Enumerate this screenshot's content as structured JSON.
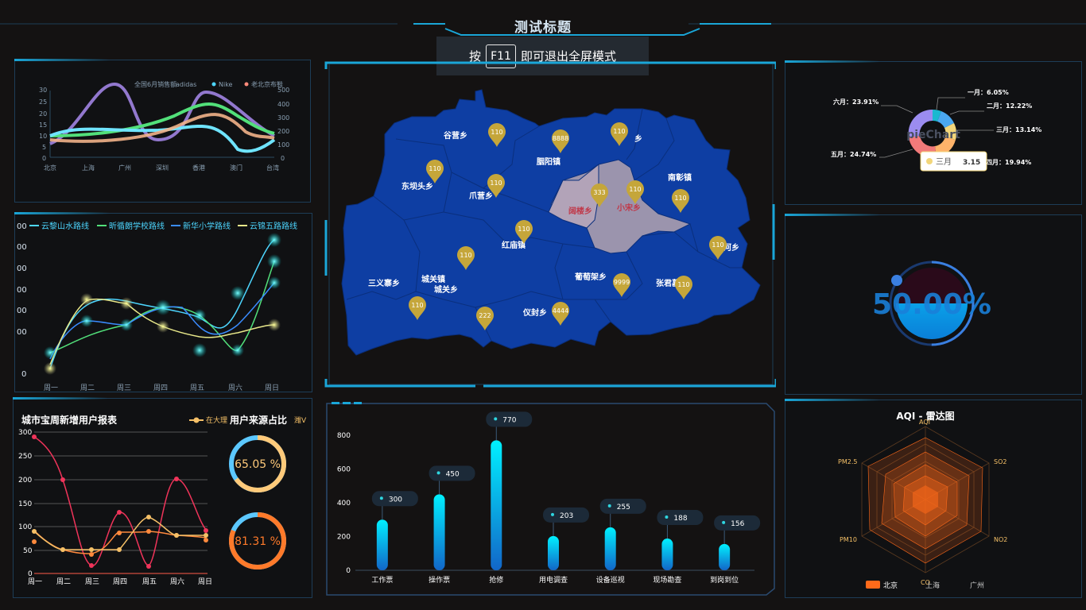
{
  "header": {
    "title": "测试标题",
    "fullscreen_tip": {
      "before": "按",
      "key": "F11",
      "after": "即可退出全屏模式"
    }
  },
  "panel1": {
    "legend": [
      "全国6月销售额",
      "adidas",
      "Nike",
      "老北京布鞋"
    ],
    "left_ticks": [
      "30",
      "25",
      "20",
      "15",
      "10",
      "5",
      "0"
    ],
    "right_ticks": [
      "500",
      "400",
      "300",
      "200",
      "100",
      "0"
    ]
  },
  "panel2": {
    "legend": [
      "云黎山水路线",
      "昕循朗学校路线",
      "新华小学路线",
      "云锦五路路线"
    ],
    "y_ticks": [
      "00",
      "00",
      "00",
      "00",
      "00",
      "00",
      "0"
    ],
    "x_ticks": [
      "周一",
      "周二",
      "周三",
      "周四",
      "周五",
      "周六",
      "周日"
    ]
  },
  "panel3": {
    "title": "城市宝周新增用户报表",
    "legend_label": "在大理",
    "pie_title": "用户来源占比",
    "pie_tag": "潍V",
    "y_ticks": [
      "300",
      "250",
      "200",
      "150",
      "100",
      "50",
      "0"
    ],
    "x_ticks": [
      "周一",
      "周二",
      "周三",
      "周四",
      "周五",
      "周六",
      "周日"
    ],
    "ring1_value": "65.05 %",
    "ring2_value": "81.31 %",
    "ring1_fraction": 0.6505,
    "ring2_fraction": 0.8131
  },
  "map": {
    "regions": [
      {
        "name": "谷营乡"
      },
      {
        "name": "胭阳镇"
      },
      {
        "name": "东坝头乡"
      },
      {
        "name": "爪营乡"
      },
      {
        "name": "南彰镇"
      },
      {
        "name": "小宋乡"
      },
      {
        "name": "阔楼乡"
      },
      {
        "name": "红庙镇"
      },
      {
        "name": "三义寨乡"
      },
      {
        "name": "城关镇"
      },
      {
        "name": "城关乡"
      },
      {
        "name": "葡萄架乡"
      },
      {
        "name": "张君墓"
      },
      {
        "name": "仪封乡"
      },
      {
        "name": "河乡"
      },
      {
        "name": "乡"
      }
    ],
    "pins": [
      "110",
      "8888",
      "110",
      "110",
      "110",
      "110",
      "333",
      "110",
      "110",
      "110",
      "110",
      "9999",
      "110",
      "110",
      "222",
      "4444"
    ]
  },
  "bar_panel": {
    "chart_data": {
      "type": "bar",
      "categories": [
        "工作票",
        "操作票",
        "抢修",
        "用电调查",
        "设备巡视",
        "现场勘查",
        "到岗到位"
      ],
      "values": [
        300,
        450,
        770,
        203,
        255,
        188,
        156
      ],
      "ylim": [
        0,
        800
      ],
      "y_ticks": [
        "0",
        "200",
        "400",
        "600",
        "800"
      ]
    }
  },
  "pie_panel": {
    "center_label": "pieChart",
    "labels": [
      "一月：6.05%",
      "二月：12.22%",
      "三月：13.14%",
      "四月：19.94%",
      "五月：24.74%",
      "六月：23.91%"
    ],
    "tooltip_label": "三月",
    "tooltip_value": "3.15"
  },
  "gauge_panel": {
    "value": "50.00%",
    "fraction": 0.5
  },
  "radar_panel": {
    "title": "AQI - 雷达图",
    "axes": [
      "AQI",
      "SO2",
      "NO2",
      "CO",
      "PM10",
      "PM2.5"
    ],
    "legend": [
      "北京",
      "上海",
      "广州"
    ]
  },
  "colors": {
    "accent": "#1aa6d8",
    "map_fill": "#0e3ea3",
    "orange": "#ff6a1a",
    "cyan": "#00e5ff"
  }
}
